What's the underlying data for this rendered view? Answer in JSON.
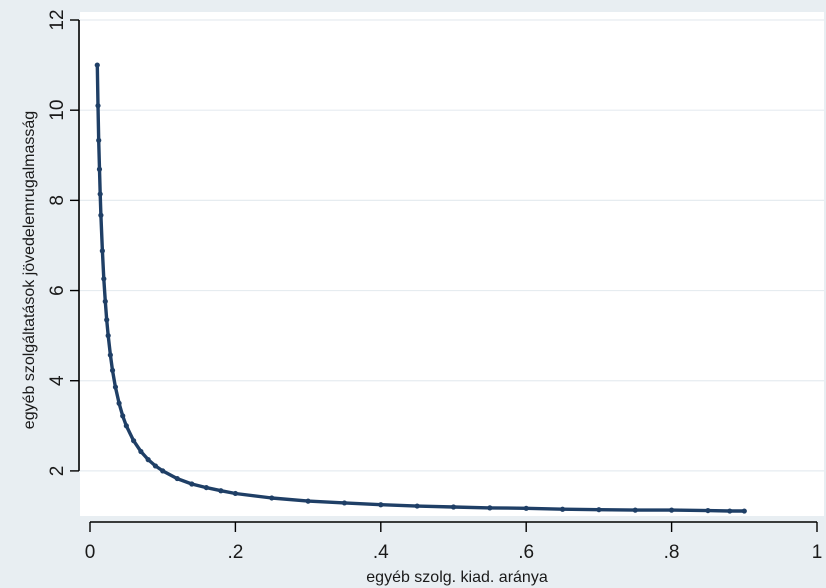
{
  "chart_data": {
    "type": "scatter",
    "xlabel": "egyéb szolg. kiad. aránya",
    "ylabel": "egyéb szolgáltatások jövedelemrugalmasság",
    "xlim": [
      0,
      1
    ],
    "ylim": [
      1,
      12
    ],
    "x_ticks": [
      0,
      0.2,
      0.4,
      0.6,
      0.8,
      1
    ],
    "x_tick_labels": [
      "0",
      ".2",
      ".4",
      ".6",
      ".8",
      "1"
    ],
    "y_ticks": [
      2,
      4,
      6,
      8,
      10,
      12
    ],
    "y_tick_labels": [
      "2",
      "4",
      "6",
      "8",
      "10",
      "12"
    ],
    "grid": true,
    "colors": {
      "series": "#1f3f66",
      "background": "#e8eef2",
      "plot_area": "#ffffff",
      "grid": "#e6ecf0",
      "axis": "#000000"
    },
    "series": [
      {
        "x": [
          0.01,
          0.011,
          0.012,
          0.013,
          0.014,
          0.015,
          0.017,
          0.019,
          0.021,
          0.023,
          0.025,
          0.028,
          0.031,
          0.035,
          0.04,
          0.045,
          0.05,
          0.06,
          0.07,
          0.08,
          0.09,
          0.1,
          0.12,
          0.14,
          0.16,
          0.18,
          0.2,
          0.25,
          0.3,
          0.35,
          0.4,
          0.45,
          0.5,
          0.55,
          0.6,
          0.65,
          0.7,
          0.75,
          0.8,
          0.85,
          0.88,
          0.9
        ],
        "y": [
          11.0,
          10.1,
          9.33,
          8.69,
          8.14,
          7.67,
          6.88,
          6.26,
          5.76,
          5.35,
          5.0,
          4.57,
          4.23,
          3.86,
          3.5,
          3.22,
          3.0,
          2.67,
          2.43,
          2.25,
          2.11,
          2.0,
          1.83,
          1.71,
          1.63,
          1.56,
          1.5,
          1.4,
          1.33,
          1.29,
          1.25,
          1.22,
          1.2,
          1.18,
          1.17,
          1.15,
          1.14,
          1.13,
          1.13,
          1.12,
          1.11,
          1.11
        ]
      }
    ]
  }
}
